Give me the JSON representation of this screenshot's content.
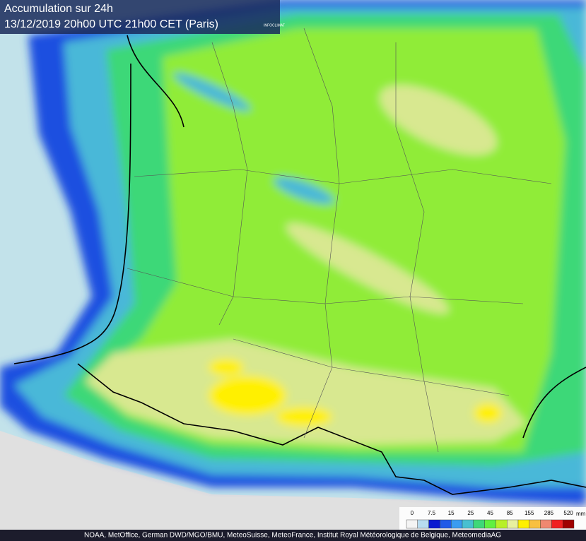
{
  "header": {
    "title": "Accumulation sur 24h",
    "subtitle": "13/12/2019  20h00 UTC  21h00 CET (Paris)",
    "logo": "INFOCLIMAT"
  },
  "legend": {
    "unit": "mm",
    "ticks": [
      "0",
      "7.5",
      "15",
      "25",
      "45",
      "85",
      "155",
      "285",
      "520"
    ],
    "colors": [
      "#f4f4f4",
      "#b8dcf0",
      "#0a1ad0",
      "#1f5ae8",
      "#3a9cf0",
      "#48c0d0",
      "#3ed878",
      "#60f040",
      "#b8f028",
      "#e8f0a0",
      "#fff000",
      "#f8c040",
      "#f08870",
      "#f02020",
      "#a00000"
    ]
  },
  "credits": "NOAA, MetOffice, German DWD/MGO/BMU, MeteoSuisse, MeteoFrance, Institut Royal Météorologique de Belgique, MeteomediaAG"
}
